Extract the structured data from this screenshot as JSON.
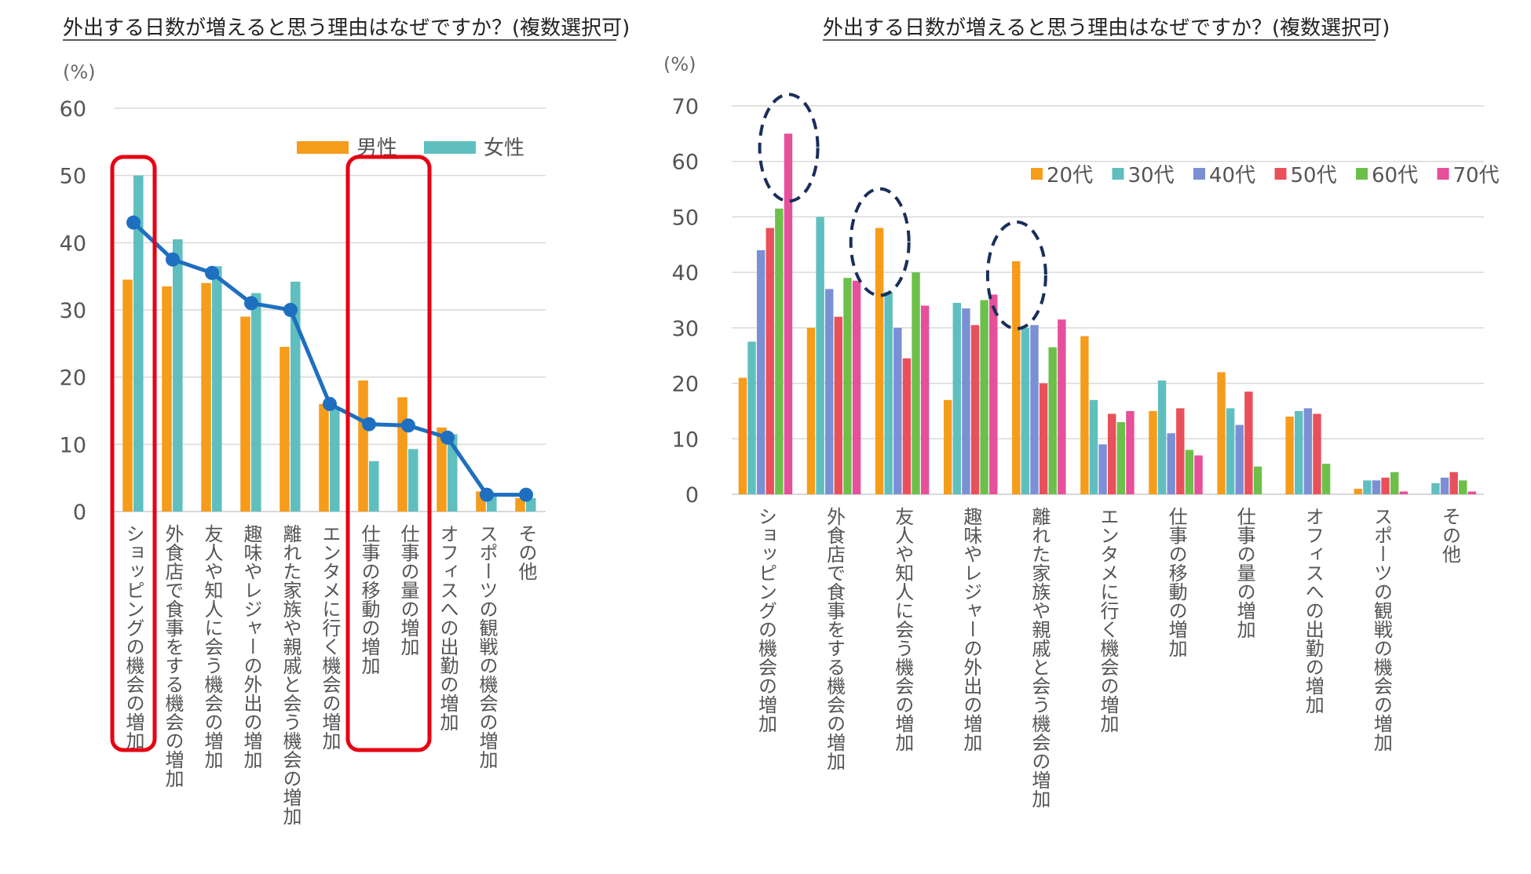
{
  "chart_data": [
    {
      "type": "bar",
      "title": "外出する日数が増えると思う理由はなぜですか？(複数選択可)",
      "yunit": "(%)",
      "ylim": [
        0,
        60
      ],
      "yticks": [
        0,
        10,
        20,
        30,
        40,
        50,
        60
      ],
      "categories": [
        "ショッピングの機会の増加",
        "外食店で食事をする機会の増加",
        "友人や知人に会う機会の増加",
        "趣味やレジャーの外出の増加",
        "離れた家族や親戚と会う機会の増加",
        "エンタメに行く機会の増加",
        "仕事の移動の増加",
        "仕事の量の増加",
        "オフィスへの出勤の増加",
        "スポーツの観戦の機会の増加",
        "その他"
      ],
      "series": [
        {
          "name": "男性",
          "color": "#f59c1a",
          "values": [
            34.5,
            33.5,
            34,
            29,
            24.5,
            16,
            19.5,
            17,
            12.5,
            3,
            2
          ]
        },
        {
          "name": "女性",
          "color": "#5fbfbf",
          "values": [
            50,
            40.5,
            36.5,
            32.5,
            34.2,
            15.5,
            7.5,
            9.3,
            11.5,
            2.5,
            2
          ]
        }
      ],
      "line": {
        "color": "#1f6fc0",
        "values": [
          43,
          37.5,
          35.5,
          31,
          30,
          16,
          13,
          12.8,
          11,
          2.5,
          2.5
        ]
      },
      "highlights": [
        {
          "categories": [
            0
          ],
          "color": "#e60012"
        },
        {
          "categories": [
            6,
            7
          ],
          "color": "#e60012"
        }
      ],
      "legend_position": "top-right",
      "grid": true
    },
    {
      "type": "bar",
      "title": "外出する日数が増えると思う理由はなぜですか？(複数選択可)",
      "yunit": "(%)",
      "ylim": [
        0,
        70
      ],
      "yticks": [
        0,
        10,
        20,
        30,
        40,
        50,
        60,
        70
      ],
      "categories": [
        "ショッピングの機会の増加",
        "外食店で食事をする機会の増加",
        "友人や知人に会う機会の増加",
        "趣味やレジャーの外出の増加",
        "離れた家族や親戚と会う機会の増加",
        "エンタメに行く機会の増加",
        "仕事の移動の増加",
        "仕事の量の増加",
        "オフィスへの出勤の増加",
        "スポーツの観戦の機会の増加",
        "その他"
      ],
      "series": [
        {
          "name": "20代",
          "color": "#f59c1a",
          "values": [
            21,
            30,
            48,
            17,
            42,
            28.5,
            15,
            22,
            14,
            1,
            0
          ]
        },
        {
          "name": "30代",
          "color": "#5fbfbf",
          "values": [
            27.5,
            50,
            36.5,
            34.5,
            30,
            17,
            20.5,
            15.5,
            15,
            2.5,
            2
          ]
        },
        {
          "name": "40代",
          "color": "#7b8fd4",
          "values": [
            44,
            37,
            30,
            33.5,
            30.5,
            9,
            11,
            12.5,
            15.5,
            2.5,
            3
          ]
        },
        {
          "name": "50代",
          "color": "#e8505b",
          "values": [
            48,
            32,
            24.5,
            30.5,
            20,
            14.5,
            15.5,
            18.5,
            14.5,
            3,
            4
          ]
        },
        {
          "name": "60代",
          "color": "#6cc04a",
          "values": [
            51.5,
            39,
            40,
            35,
            26.5,
            13,
            8,
            5,
            5.5,
            4,
            2.5
          ]
        },
        {
          "name": "70代",
          "color": "#e64f9a",
          "values": [
            65,
            38.5,
            34,
            36,
            31.5,
            15,
            7,
            0,
            0,
            0.5,
            0.5
          ]
        }
      ],
      "circles": [
        {
          "category": 0,
          "series": 5
        },
        {
          "category": 2,
          "series": 0
        },
        {
          "category": 4,
          "series": 0
        }
      ],
      "legend_position": "top-right",
      "grid": true
    }
  ]
}
